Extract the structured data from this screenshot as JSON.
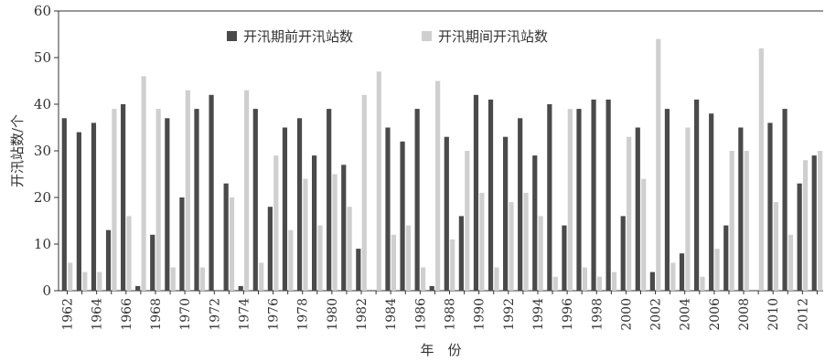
{
  "chart_data": {
    "type": "bar",
    "xlabel": "年　份",
    "ylabel": "开汛站数/个",
    "ylim": [
      0,
      60
    ],
    "yticks": [
      0,
      10,
      20,
      30,
      40,
      50,
      60
    ],
    "grid": false,
    "legend_position": "top",
    "x": [
      1962,
      1963,
      1964,
      1965,
      1966,
      1967,
      1968,
      1969,
      1970,
      1971,
      1972,
      1973,
      1974,
      1975,
      1976,
      1977,
      1978,
      1979,
      1980,
      1981,
      1982,
      1983,
      1984,
      1985,
      1986,
      1987,
      1988,
      1989,
      1990,
      1991,
      1992,
      1993,
      1994,
      1995,
      1996,
      1997,
      1998,
      1999,
      2000,
      2001,
      2002,
      2003,
      2004,
      2005,
      2006,
      2007,
      2008,
      2009,
      2010,
      2011,
      2012,
      2013
    ],
    "x_tick_labels": [
      "1962",
      "1964",
      "1966",
      "1968",
      "1970",
      "1972",
      "1974",
      "1976",
      "1978",
      "1980",
      "1982",
      "1984",
      "1986",
      "1988",
      "1990",
      "1992",
      "1994",
      "1996",
      "1998",
      "2000",
      "2002",
      "2004",
      "2006",
      "2008",
      "2010",
      "2012"
    ],
    "series": [
      {
        "name": "开汛期前开汛站数",
        "color": "#4a4a4a",
        "values": [
          37,
          34,
          36,
          13,
          40,
          1,
          12,
          37,
          20,
          39,
          42,
          23,
          1,
          39,
          18,
          35,
          37,
          29,
          39,
          27,
          9,
          0,
          35,
          32,
          39,
          1,
          33,
          16,
          42,
          41,
          33,
          37,
          29,
          40,
          14,
          39,
          41,
          41,
          16,
          35,
          4,
          39,
          8,
          41,
          38,
          14,
          35,
          0,
          36,
          39,
          23,
          29
        ]
      },
      {
        "name": "开汛期间开汛站数",
        "color": "#cfcfcf",
        "values": [
          6,
          4,
          4,
          39,
          16,
          46,
          39,
          5,
          43,
          5,
          0,
          20,
          43,
          6,
          29,
          13,
          24,
          14,
          25,
          18,
          42,
          47,
          12,
          14,
          5,
          45,
          11,
          30,
          21,
          5,
          19,
          21,
          16,
          3,
          39,
          5,
          3,
          4,
          33,
          24,
          54,
          6,
          35,
          3,
          9,
          30,
          30,
          52,
          19,
          12,
          28,
          30
        ]
      }
    ]
  }
}
